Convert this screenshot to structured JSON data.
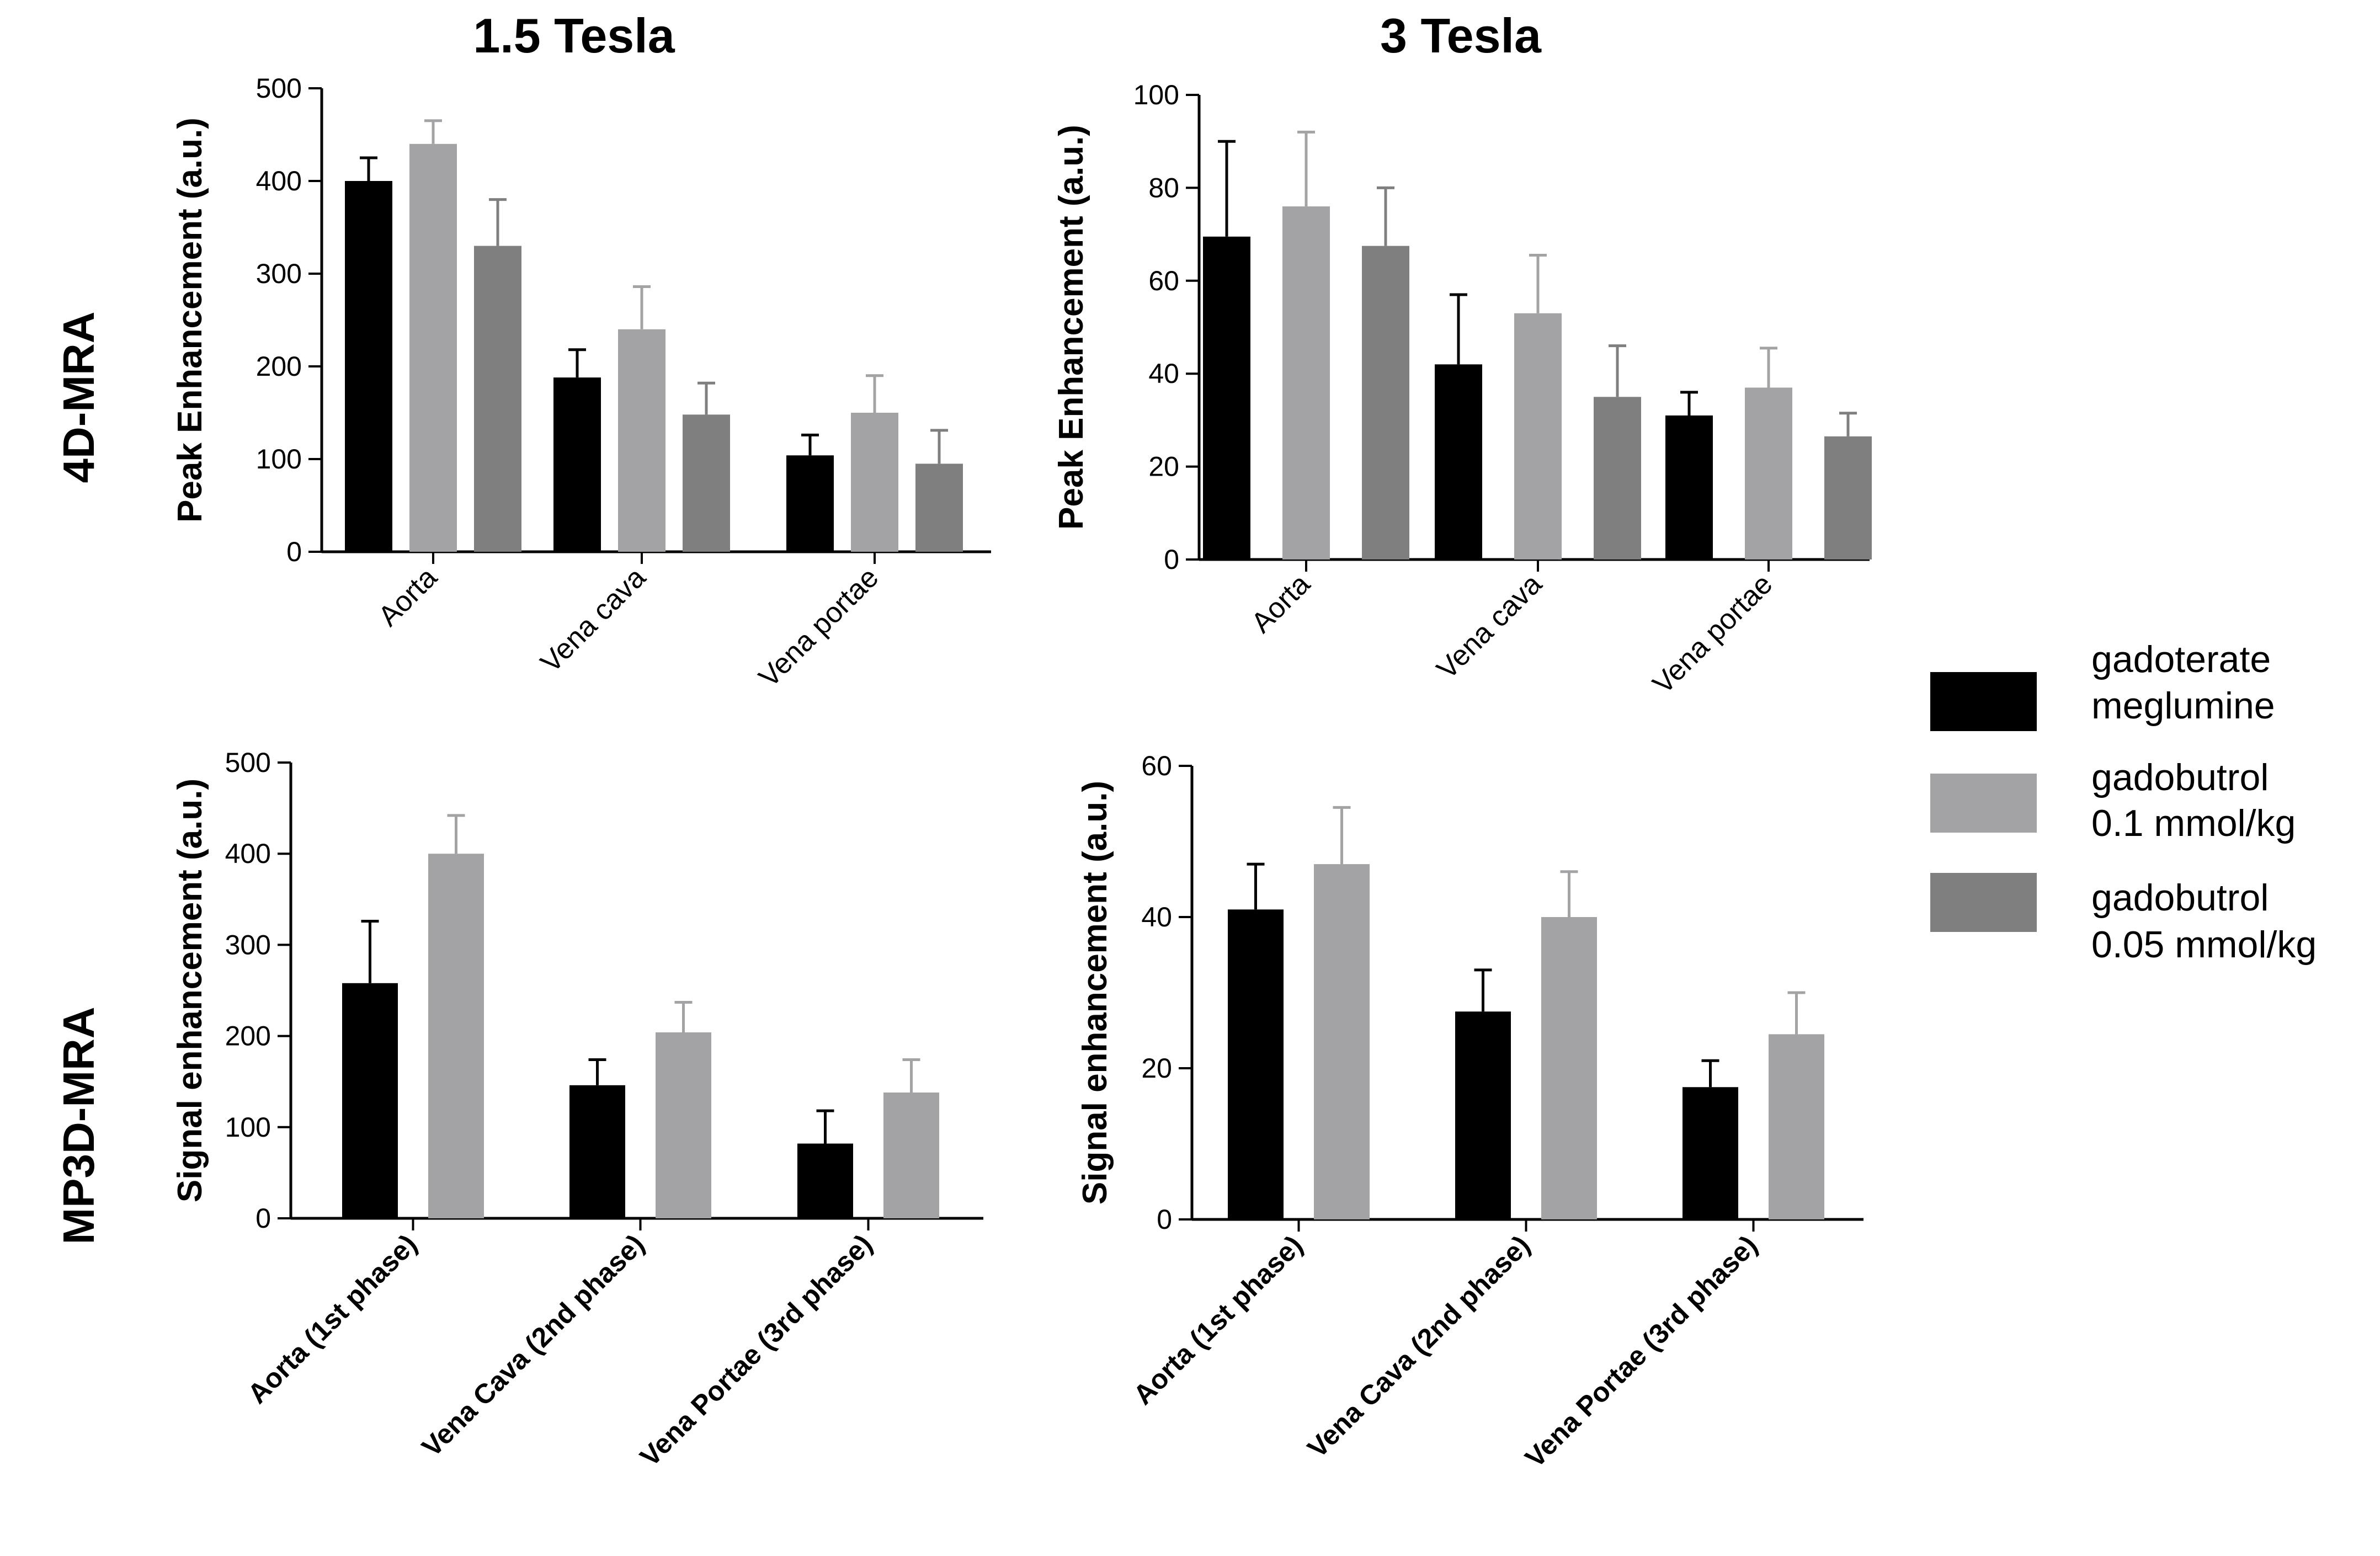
{
  "figure": {
    "col_titles": [
      "1.5 Tesla",
      "3 Tesla"
    ],
    "row_titles": [
      "4D-MRA",
      "MP3D-MRA"
    ]
  },
  "legend": {
    "items": [
      {
        "lines": [
          "gadoterate",
          "meglumine"
        ],
        "color": "#000000"
      },
      {
        "lines": [
          "gadobutrol",
          "0.1 mmol/kg"
        ],
        "color": "#a3a3a5"
      },
      {
        "lines": [
          "gadobutrol",
          "0.05 mmol/kg"
        ],
        "color": "#7f7f7f"
      }
    ]
  },
  "chart_data": [
    {
      "type": "bar",
      "panel": "4D-MRA / 1.5 Tesla",
      "ylabel": "Peak Enhancement (a.u.)",
      "ylim": [
        0,
        500
      ],
      "yticks": [
        0,
        100,
        200,
        300,
        400,
        500
      ],
      "categories": [
        "Aorta",
        "Vena cava",
        "Vena portae"
      ],
      "category_label_style": "normal",
      "series": [
        {
          "name": "gadoterate meglumine",
          "color": "#000000",
          "values": [
            400,
            188,
            104
          ],
          "errors": [
            25,
            30,
            22
          ]
        },
        {
          "name": "gadobutrol 0.1 mmol/kg",
          "color": "#a3a3a5",
          "values": [
            440,
            240,
            150
          ],
          "errors": [
            25,
            46,
            40
          ]
        },
        {
          "name": "gadobutrol 0.05 mmol/kg",
          "color": "#7f7f7f",
          "values": [
            330,
            148,
            95
          ],
          "errors": [
            50,
            34,
            36
          ]
        }
      ]
    },
    {
      "type": "bar",
      "panel": "4D-MRA / 3 Tesla",
      "ylabel": "Peak Enhancement (a.u.)",
      "ylim": [
        0,
        100
      ],
      "yticks": [
        0,
        20,
        40,
        60,
        80,
        100
      ],
      "categories": [
        "Aorta",
        "Vena cava",
        "Vena portae"
      ],
      "category_label_style": "normal",
      "series": [
        {
          "name": "gadoterate meglumine",
          "color": "#000000",
          "values": [
            69.5,
            42,
            31
          ],
          "errors": [
            20.5,
            15,
            5
          ]
        },
        {
          "name": "gadobutrol 0.1 mmol/kg",
          "color": "#a3a3a5",
          "values": [
            76,
            53,
            37
          ],
          "errors": [
            16,
            12.5,
            8.5
          ]
        },
        {
          "name": "gadobutrol 0.05 mmol/kg",
          "color": "#7f7f7f",
          "values": [
            67.5,
            35,
            26.5
          ],
          "errors": [
            12.5,
            11,
            5
          ]
        }
      ]
    },
    {
      "type": "bar",
      "panel": "MP3D-MRA / 1.5 Tesla",
      "ylabel": "Signal enhancement (a.u.)",
      "ylim": [
        0,
        500
      ],
      "yticks": [
        0,
        100,
        200,
        300,
        400,
        500
      ],
      "categories": [
        "Aorta (1st phase)",
        "Vena Cava (2nd phase)",
        "Vena Portae (3rd phase)"
      ],
      "category_label_style": "bold",
      "series": [
        {
          "name": "gadoterate meglumine",
          "color": "#000000",
          "values": [
            258,
            146,
            82
          ],
          "errors": [
            68,
            28,
            36
          ]
        },
        {
          "name": "gadobutrol 0.1 mmol/kg",
          "color": "#a3a3a5",
          "values": [
            400,
            204,
            138
          ],
          "errors": [
            42,
            33,
            36
          ]
        }
      ]
    },
    {
      "type": "bar",
      "panel": "MP3D-MRA / 3 Tesla",
      "ylabel": "Signal enhancement (a.u.)",
      "ylim": [
        0,
        60
      ],
      "yticks": [
        0,
        20,
        40,
        60
      ],
      "categories": [
        "Aorta (1st phase)",
        "Vena Cava (2nd phase)",
        "Vena Portae (3rd phase)"
      ],
      "category_label_style": "bold",
      "series": [
        {
          "name": "gadoterate meglumine",
          "color": "#000000",
          "values": [
            41,
            27.5,
            17.5
          ],
          "errors": [
            6,
            5.5,
            3.5
          ]
        },
        {
          "name": "gadobutrol 0.1 mmol/kg",
          "color": "#a3a3a5",
          "values": [
            47,
            40,
            24.5
          ],
          "errors": [
            7.5,
            6,
            5.5
          ]
        }
      ]
    }
  ]
}
